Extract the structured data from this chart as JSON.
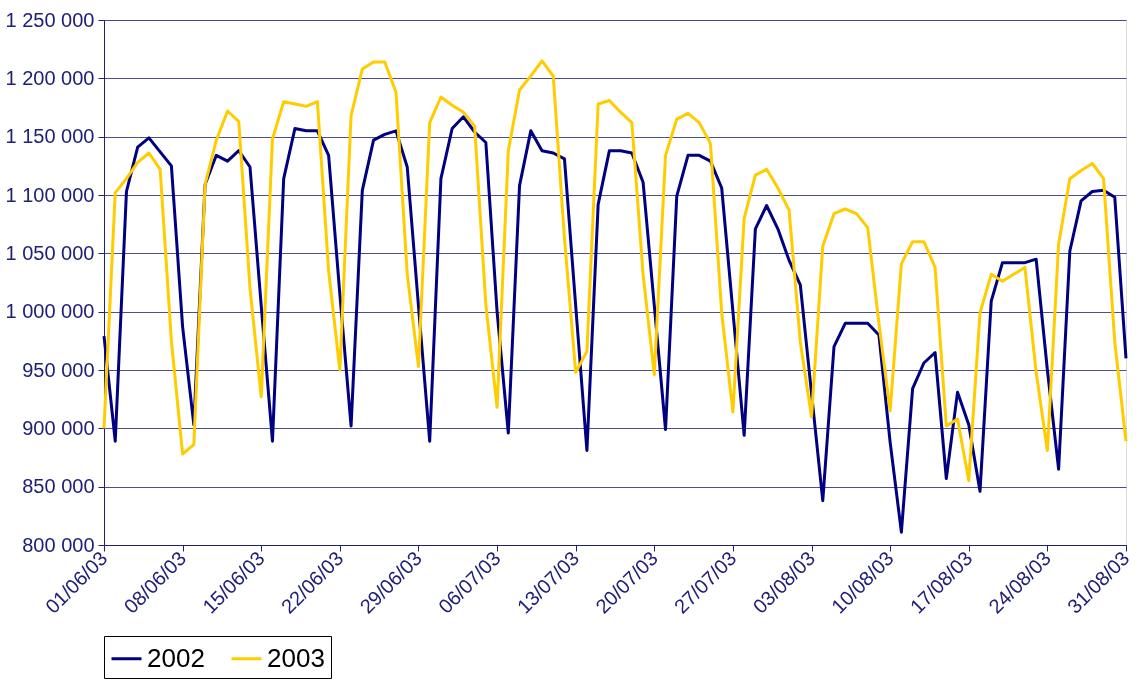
{
  "chart_data": {
    "type": "line",
    "x": [
      "2003-06-01",
      "2003-06-02",
      "2003-06-03",
      "2003-06-04",
      "2003-06-05",
      "2003-06-06",
      "2003-06-07",
      "2003-06-08",
      "2003-06-09",
      "2003-06-10",
      "2003-06-11",
      "2003-06-12",
      "2003-06-13",
      "2003-06-14",
      "2003-06-15",
      "2003-06-16",
      "2003-06-17",
      "2003-06-18",
      "2003-06-19",
      "2003-06-20",
      "2003-06-21",
      "2003-06-22",
      "2003-06-23",
      "2003-06-24",
      "2003-06-25",
      "2003-06-26",
      "2003-06-27",
      "2003-06-28",
      "2003-06-29",
      "2003-06-30",
      "2003-07-01",
      "2003-07-02",
      "2003-07-03",
      "2003-07-04",
      "2003-07-05",
      "2003-07-06",
      "2003-07-07",
      "2003-07-08",
      "2003-07-09",
      "2003-07-10",
      "2003-07-11",
      "2003-07-12",
      "2003-07-13",
      "2003-07-14",
      "2003-07-15",
      "2003-07-16",
      "2003-07-17",
      "2003-07-18",
      "2003-07-19",
      "2003-07-20",
      "2003-07-21",
      "2003-07-22",
      "2003-07-23",
      "2003-07-24",
      "2003-07-25",
      "2003-07-26",
      "2003-07-27",
      "2003-07-28",
      "2003-07-29",
      "2003-07-30",
      "2003-07-31",
      "2003-08-01",
      "2003-08-02",
      "2003-08-03",
      "2003-08-04",
      "2003-08-05",
      "2003-08-06",
      "2003-08-07",
      "2003-08-08",
      "2003-08-09",
      "2003-08-10",
      "2003-08-11",
      "2003-08-12",
      "2003-08-13",
      "2003-08-14",
      "2003-08-15",
      "2003-08-16",
      "2003-08-17",
      "2003-08-18",
      "2003-08-19",
      "2003-08-20",
      "2003-08-21",
      "2003-08-22",
      "2003-08-23",
      "2003-08-24",
      "2003-08-25",
      "2003-08-26",
      "2003-08-27",
      "2003-08-28",
      "2003-08-29",
      "2003-08-30",
      "2003-08-31"
    ],
    "series": [
      {
        "name": "2002",
        "color": "#000080",
        "values": [
          979000,
          889000,
          1103000,
          1141000,
          1149000,
          1137000,
          1125000,
          987000,
          903000,
          1109000,
          1134000,
          1129000,
          1138000,
          1124000,
          1005000,
          889000,
          1114000,
          1157000,
          1155000,
          1155000,
          1134000,
          1015000,
          902000,
          1104000,
          1147000,
          1152000,
          1155000,
          1124000,
          1005000,
          889000,
          1114000,
          1157000,
          1167000,
          1154000,
          1145000,
          1000000,
          896000,
          1108000,
          1155000,
          1138000,
          1136000,
          1131000,
          1005000,
          881000,
          1092000,
          1138000,
          1138000,
          1136000,
          1111000,
          1005000,
          899000,
          1099000,
          1134000,
          1134000,
          1129000,
          1106000,
          1000000,
          894000,
          1071000,
          1091000,
          1071000,
          1044000,
          1023000,
          930000,
          838000,
          970000,
          990000,
          990000,
          990000,
          980000,
          888000,
          811000,
          934000,
          956000,
          965000,
          857000,
          931000,
          903000,
          846000,
          1009000,
          1042000,
          1042000,
          1042000,
          1045000,
          950000,
          865000,
          1052000,
          1095000,
          1103000,
          1104000,
          1098000,
          960000
        ]
      },
      {
        "name": "2003",
        "color": "#ffcc00",
        "values": [
          900000,
          1102000,
          1114000,
          1128000,
          1136000,
          1122000,
          975000,
          878000,
          886000,
          1109000,
          1147000,
          1172000,
          1163000,
          1020000,
          927000,
          1148000,
          1180000,
          1178000,
          1176000,
          1180000,
          1035000,
          950000,
          1168000,
          1208000,
          1214000,
          1214000,
          1188000,
          1032000,
          953000,
          1162000,
          1184000,
          1177000,
          1171000,
          1159000,
          1006000,
          918000,
          1138000,
          1190000,
          1202000,
          1215000,
          1202000,
          1063000,
          948000,
          966000,
          1178000,
          1181000,
          1171000,
          1162000,
          1032000,
          946000,
          1134000,
          1165000,
          1170000,
          1162000,
          1144000,
          999000,
          914000,
          1080000,
          1117000,
          1122000,
          1106000,
          1087000,
          974000,
          910000,
          1056000,
          1084000,
          1088000,
          1084000,
          1072000,
          990000,
          915000,
          1041000,
          1060000,
          1060000,
          1038000,
          902000,
          908000,
          855000,
          999000,
          1032000,
          1026000,
          1032000,
          1038000,
          948000,
          881000,
          1058000,
          1114000,
          1121000,
          1127000,
          1114000,
          974000,
          889000
        ]
      }
    ],
    "xlim": [
      "2003-06-01",
      "2003-08-31"
    ],
    "xticks": [
      {
        "value": "2003-06-01",
        "label": "01/06/03"
      },
      {
        "value": "2003-06-08",
        "label": "08/06/03"
      },
      {
        "value": "2003-06-15",
        "label": "15/06/03"
      },
      {
        "value": "2003-06-22",
        "label": "22/06/03"
      },
      {
        "value": "2003-06-29",
        "label": "29/06/03"
      },
      {
        "value": "2003-07-06",
        "label": "06/07/03"
      },
      {
        "value": "2003-07-13",
        "label": "13/07/03"
      },
      {
        "value": "2003-07-20",
        "label": "20/07/03"
      },
      {
        "value": "2003-07-27",
        "label": "27/07/03"
      },
      {
        "value": "2003-08-03",
        "label": "03/08/03"
      },
      {
        "value": "2003-08-10",
        "label": "10/08/03"
      },
      {
        "value": "2003-08-17",
        "label": "17/08/03"
      },
      {
        "value": "2003-08-24",
        "label": "24/08/03"
      },
      {
        "value": "2003-08-31",
        "label": "31/08/03"
      }
    ],
    "ylim": [
      800000,
      1250000
    ],
    "yticks": [
      {
        "value": 800000,
        "label": "800 000"
      },
      {
        "value": 850000,
        "label": "850 000"
      },
      {
        "value": 900000,
        "label": "900 000"
      },
      {
        "value": 950000,
        "label": "950 000"
      },
      {
        "value": 1000000,
        "label": "1 000 000"
      },
      {
        "value": 1050000,
        "label": "1 050 000"
      },
      {
        "value": 1100000,
        "label": "1 100 000"
      },
      {
        "value": 1150000,
        "label": "1 150 000"
      },
      {
        "value": 1200000,
        "label": "1 200 000"
      },
      {
        "value": 1250000,
        "label": "1 250 000"
      }
    ],
    "grid": "y",
    "legend": "bottom",
    "marker": "none",
    "line_style": "solid"
  }
}
